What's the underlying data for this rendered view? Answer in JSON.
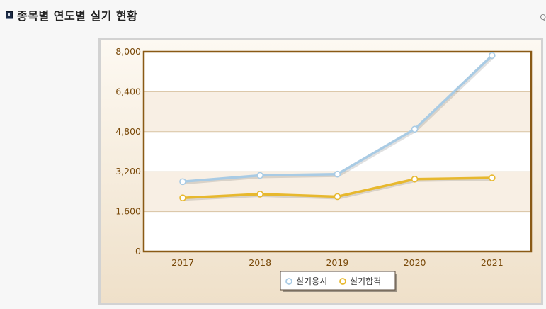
{
  "page": {
    "title": "종목별 연도별 실기 현황",
    "corner_text": "Q"
  },
  "chart_data": {
    "type": "line",
    "title": "",
    "xlabel": "",
    "ylabel": "",
    "x": [
      "2017",
      "2018",
      "2019",
      "2020",
      "2021"
    ],
    "ylim": [
      0,
      8000
    ],
    "yticks": [
      "0",
      "1,600",
      "3,200",
      "4,800",
      "6,400",
      "8,000"
    ],
    "ytick_values": [
      0,
      1600,
      3200,
      4800,
      6400,
      8000
    ],
    "grid": true,
    "legend_position": "bottom-center",
    "series": [
      {
        "name": "실기응시",
        "color": "#a9cbe4",
        "values": [
          2800,
          3050,
          3100,
          4900,
          7850
        ]
      },
      {
        "name": "실기합격",
        "color": "#e7b82e",
        "values": [
          2150,
          2300,
          2200,
          2900,
          2950
        ]
      }
    ],
    "colors": {
      "plot_border": "#8a5a15",
      "band": "#f8efe4",
      "gridline": "#d8c3a2",
      "axis_text": "#7a4a0a"
    }
  }
}
